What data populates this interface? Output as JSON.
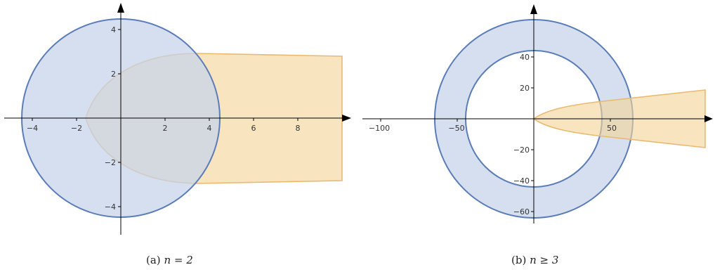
{
  "colors": {
    "disk_fill": "#c6d2ea",
    "disk_stroke": "#5b7db7",
    "parabola_fill": "#f3d59a",
    "parabola_stroke": "#e9b970",
    "axis": "#000000"
  },
  "panels": [
    {
      "id": "a",
      "caption_prefix": "(a)",
      "caption_math": "n = 2",
      "x_ticks": [
        -4,
        -2,
        2,
        4,
        6,
        8
      ],
      "y_ticks": [
        -4,
        -2,
        2,
        4
      ],
      "x_tick_labels": [
        "−4",
        "−2",
        "2",
        "4",
        "6",
        "8"
      ],
      "y_tick_labels": [
        "−4",
        "−2",
        "2",
        "4"
      ]
    },
    {
      "id": "b",
      "caption_prefix": "(b)",
      "caption_math": "n ≥ 3",
      "x_ticks": [
        -100,
        -50,
        50
      ],
      "y_ticks": [
        -60,
        -40,
        -20,
        20,
        40
      ],
      "x_tick_labels": [
        "−100",
        "−50",
        "50"
      ],
      "y_tick_labels": [
        "−60",
        "−40",
        "−20",
        "20",
        "40"
      ]
    }
  ]
}
